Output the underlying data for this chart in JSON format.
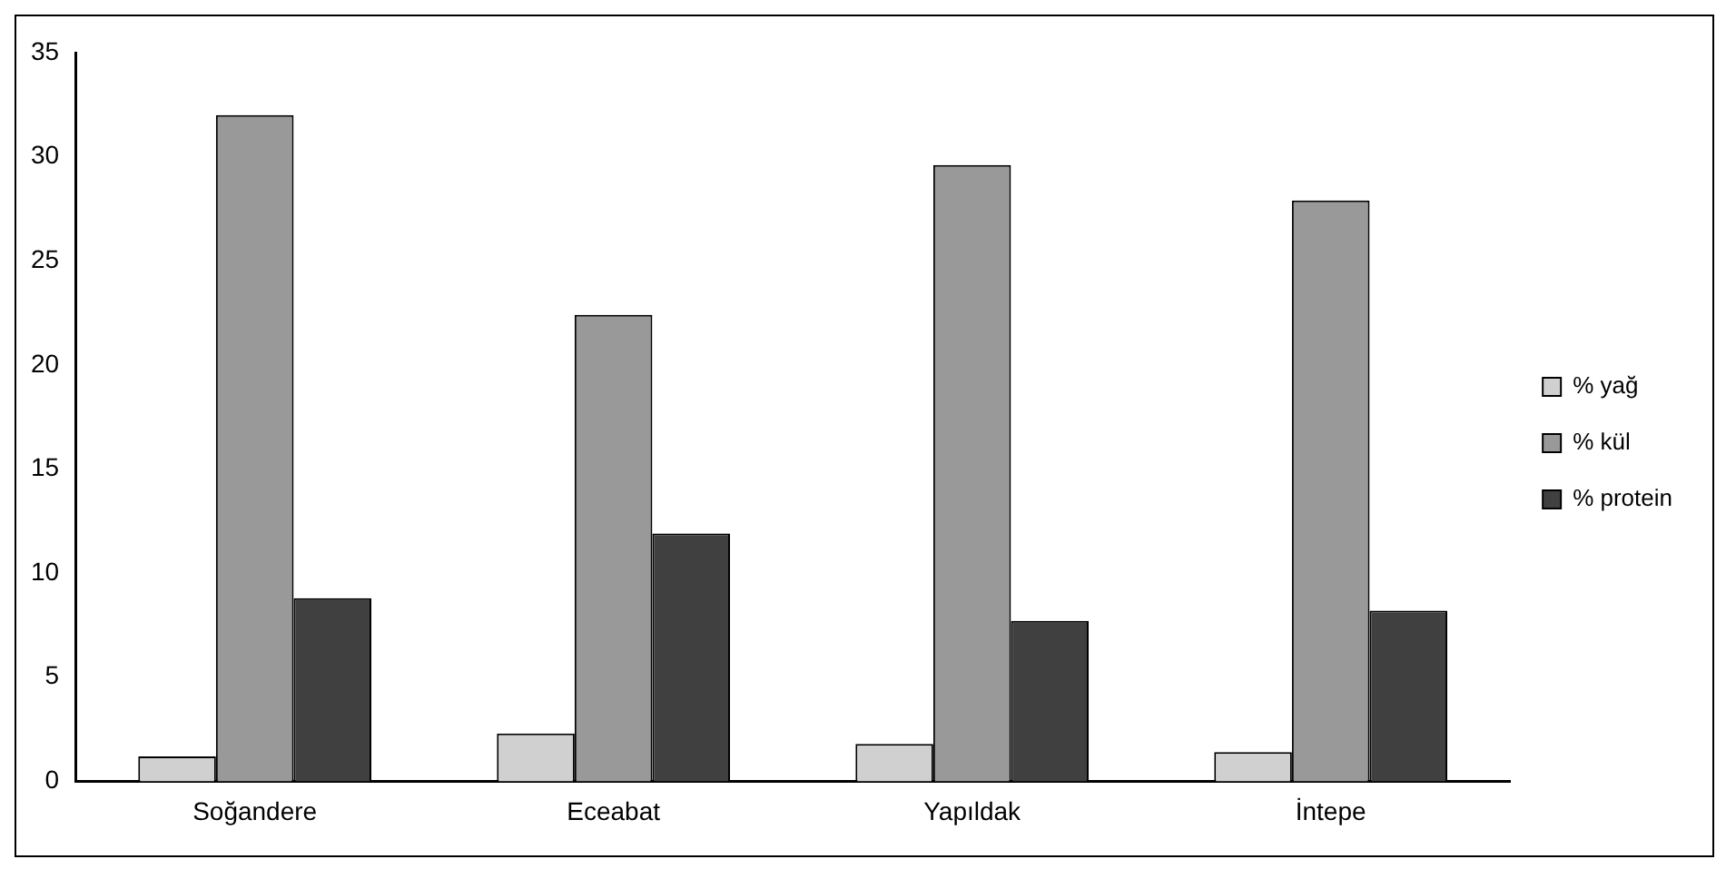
{
  "chart_data": {
    "type": "bar",
    "categories": [
      "Soğandere",
      "Eceabat",
      "Yapıldak",
      "İntepe"
    ],
    "series": [
      {
        "name": "% yağ",
        "color": "#d0d0d0",
        "values": [
          1.2,
          2.3,
          1.8,
          1.4
        ]
      },
      {
        "name": "% kül",
        "color": "#999999",
        "values": [
          32,
          22.4,
          29.6,
          27.9
        ]
      },
      {
        "name": "% protein",
        "color": "#404040",
        "values": [
          8.8,
          11.9,
          7.7,
          8.2
        ]
      }
    ],
    "ylim": [
      0,
      35
    ],
    "yticks": [
      0,
      5,
      10,
      15,
      20,
      25,
      30,
      35
    ],
    "grid": false,
    "legend": "right"
  }
}
